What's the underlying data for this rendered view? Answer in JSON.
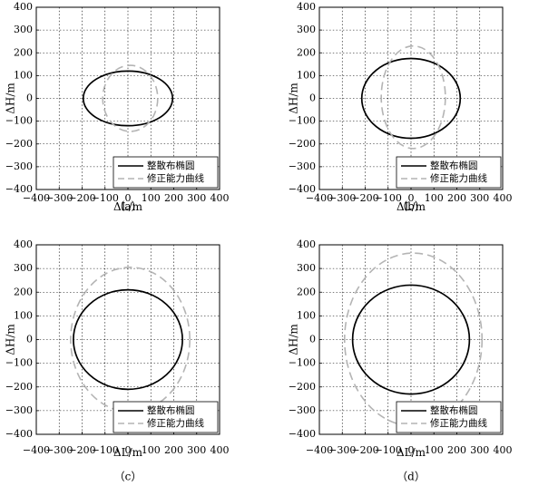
{
  "chart_data": [
    {
      "type": "line",
      "panel_label": "（a）",
      "xlabel": "ΔL/m",
      "ylabel": "ΔH/m",
      "xlim": [
        -400,
        400
      ],
      "ylim": [
        -400,
        400
      ],
      "xticks": [
        "−400",
        "−300",
        "−200",
        "−100",
        "0",
        "100",
        "200",
        "300",
        "400"
      ],
      "yticks": [
        "400",
        "300",
        "200",
        "100",
        "0",
        "−100",
        "−200",
        "−300",
        "−400"
      ],
      "grid": true,
      "legend_position": "bottom-right",
      "series": [
        {
          "name": "整散布椭圆",
          "shape": "ellipse",
          "center": [
            0,
            0
          ],
          "semi_axis_x": 195,
          "semi_axis_y": 120,
          "color": "#000000",
          "dash": "solid"
        },
        {
          "name": "修正能力曲线",
          "shape": "ellipse",
          "center": [
            10,
            0
          ],
          "semi_axis_x": 120,
          "semi_axis_y": 145,
          "color": "#b4b4b4",
          "dash": "dashed"
        }
      ]
    },
    {
      "type": "line",
      "panel_label": "（b）",
      "xlabel": "ΔL/m",
      "ylabel": "ΔH/m",
      "xlim": [
        -400,
        400
      ],
      "ylim": [
        -400,
        400
      ],
      "xticks": [
        "−400",
        "−300",
        "−200",
        "−100",
        "0",
        "100",
        "200",
        "300",
        "400"
      ],
      "yticks": [
        "400",
        "300",
        "200",
        "100",
        "0",
        "−100",
        "−200",
        "−300",
        "−400"
      ],
      "grid": true,
      "legend_position": "bottom-right",
      "series": [
        {
          "name": "整散布椭圆",
          "shape": "ellipse",
          "center": [
            0,
            0
          ],
          "semi_axis_x": 215,
          "semi_axis_y": 175,
          "color": "#000000",
          "dash": "solid"
        },
        {
          "name": "修正能力曲线",
          "shape": "ellipse",
          "center": [
            10,
            5
          ],
          "semi_axis_x": 140,
          "semi_axis_y": 225,
          "color": "#b4b4b4",
          "dash": "dashed"
        }
      ]
    },
    {
      "type": "line",
      "panel_label": "（c）",
      "xlabel": "ΔL/m",
      "ylabel": "ΔH/m",
      "xlim": [
        -400,
        400
      ],
      "ylim": [
        -400,
        400
      ],
      "xticks": [
        "−400",
        "−300",
        "−200",
        "−100",
        "0",
        "100",
        "200",
        "300",
        "400"
      ],
      "yticks": [
        "400",
        "300",
        "200",
        "100",
        "0",
        "−100",
        "−200",
        "−300",
        "−400"
      ],
      "grid": true,
      "legend_position": "bottom-right",
      "series": [
        {
          "name": "整散布椭圆",
          "shape": "ellipse",
          "center": [
            0,
            0
          ],
          "semi_axis_x": 238,
          "semi_axis_y": 210,
          "color": "#000000",
          "dash": "solid"
        },
        {
          "name": "修正能力曲线",
          "shape": "ellipse",
          "center": [
            10,
            0
          ],
          "semi_axis_x": 260,
          "semi_axis_y": 305,
          "color": "#b4b4b4",
          "dash": "dashed"
        }
      ]
    },
    {
      "type": "line",
      "panel_label": "（d）",
      "xlabel": "ΔL/m",
      "ylabel": "ΔH/m",
      "xlim": [
        -400,
        400
      ],
      "ylim": [
        -400,
        400
      ],
      "xticks": [
        "−400",
        "−300",
        "−200",
        "−100",
        "0",
        "100",
        "200",
        "300",
        "400"
      ],
      "yticks": [
        "400",
        "300",
        "200",
        "100",
        "0",
        "−100",
        "−200",
        "−300",
        "−400"
      ],
      "grid": true,
      "legend_position": "bottom-right",
      "series": [
        {
          "name": "整散布椭圆",
          "shape": "ellipse",
          "center": [
            0,
            0
          ],
          "semi_axis_x": 255,
          "semi_axis_y": 230,
          "color": "#000000",
          "dash": "solid"
        },
        {
          "name": "修正能力曲线",
          "shape": "ellipse",
          "center": [
            10,
            0
          ],
          "semi_axis_x": 300,
          "semi_axis_y": 365,
          "color": "#b4b4b4",
          "dash": "dashed"
        }
      ]
    }
  ]
}
